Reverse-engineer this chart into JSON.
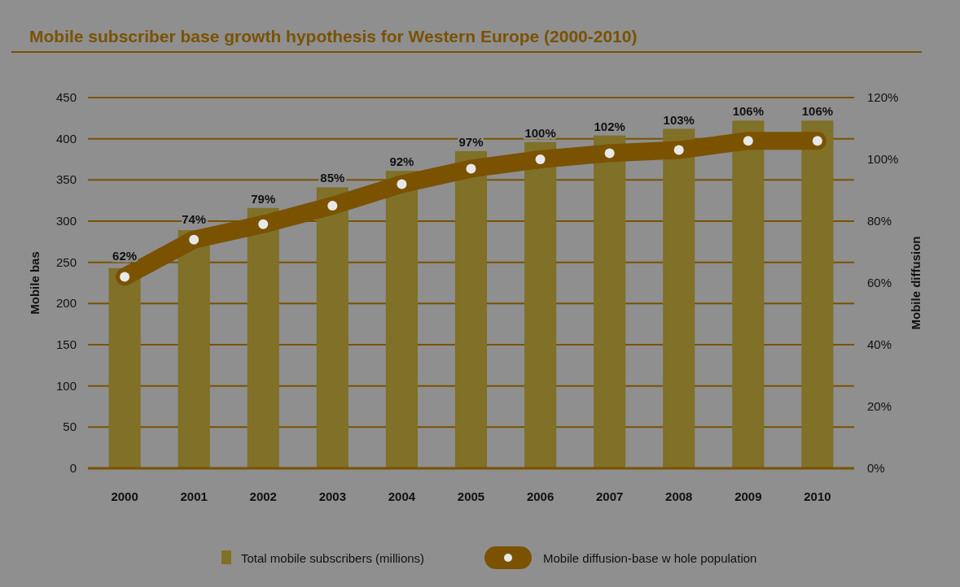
{
  "chart_data": {
    "type": "bar",
    "title": "Mobile subscriber base growth hypothesis for Western Europe (2000-2010)",
    "categories": [
      "2000",
      "2001",
      "2002",
      "2003",
      "2004",
      "2005",
      "2006",
      "2007",
      "2008",
      "2009",
      "2010"
    ],
    "series": [
      {
        "name": "Total mobile subscribers (millions)",
        "color": "#807028",
        "values": [
          243,
          289,
          316,
          341,
          361,
          385,
          396,
          404,
          412,
          422,
          422
        ]
      },
      {
        "name": "Mobile diffusion-base w hole population",
        "type": "line",
        "axis": "y2",
        "color": "#7a5200",
        "marker": "circle",
        "values": [
          62,
          74,
          79,
          85,
          92,
          97,
          100,
          102,
          103,
          106,
          106
        ],
        "value_labels": [
          "62%",
          "74%",
          "79%",
          "85%",
          "92%",
          "97%",
          "100%",
          "102%",
          "103%",
          "106%",
          "106%"
        ]
      }
    ],
    "ylabel": "Mobile bas",
    "y2label": "Mobile diffusion",
    "ylim": [
      0,
      450
    ],
    "yticks": [
      0,
      50,
      100,
      150,
      200,
      250,
      300,
      350,
      400,
      450
    ],
    "y2lim": [
      0,
      120
    ],
    "y2ticks": [
      {
        "value": 0,
        "label": "0%"
      },
      {
        "value": 20,
        "label": "20%"
      },
      {
        "value": 40,
        "label": "40%"
      },
      {
        "value": 60,
        "label": "60%"
      },
      {
        "value": 80,
        "label": "80%"
      },
      {
        "value": 100,
        "label": "100%"
      },
      {
        "value": 120,
        "label": "120%"
      }
    ],
    "grid": "y",
    "legend": "bottom"
  }
}
